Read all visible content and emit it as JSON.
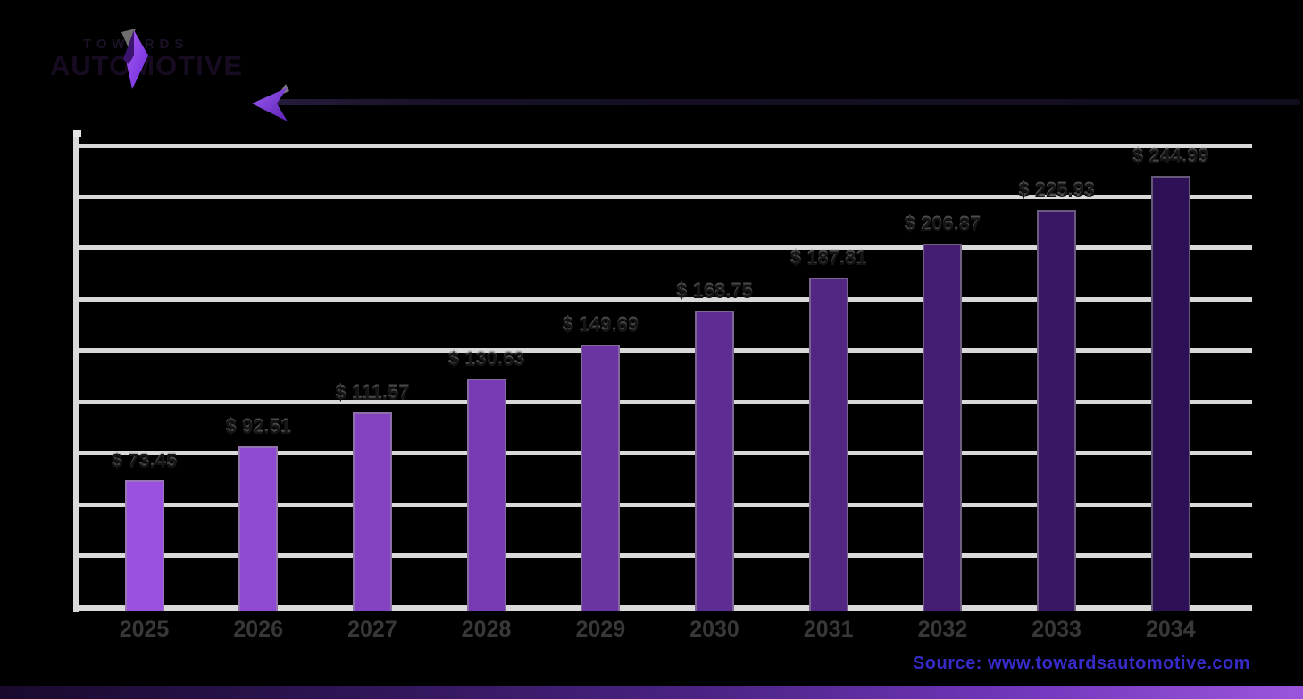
{
  "brand": {
    "name_top": "TOWARDS",
    "name_bottom": "AUTOMOTIVE"
  },
  "source": {
    "label": "Source: www.towardsautomotive.com",
    "color": "#372bc7"
  },
  "colors": {
    "page_background": "#000000",
    "gridline": "#d9d9d9",
    "value_label_text": "#151515",
    "year_label_text": "#383838",
    "bottom_strip_gradient": [
      "#190a2d",
      "#9b55dc"
    ],
    "logo_purple": "#8b46e8"
  },
  "chart_data": {
    "type": "bar",
    "title": "",
    "xlabel": "",
    "ylabel": "",
    "categories": [
      "2025",
      "2026",
      "2027",
      "2028",
      "2029",
      "2030",
      "2031",
      "2032",
      "2033",
      "2034"
    ],
    "values": [
      73.45,
      92.51,
      111.57,
      130.63,
      149.69,
      168.75,
      187.81,
      206.87,
      225.93,
      244.99
    ],
    "labels": [
      "$ 73.45",
      "$ 92.51",
      "$ 111.57",
      "$ 130.63",
      "$ 149.69",
      "$ 168.75",
      "$ 187.81",
      "$ 206.87",
      "$ 225.93",
      "$ 244.99"
    ],
    "ylim": [
      0,
      260
    ],
    "gridline_count": 10,
    "grid_on": true,
    "legend": "none",
    "bar_colors": [
      "#9B51E0",
      "#8F4AD1",
      "#8343C1",
      "#763BB2",
      "#6A34A2",
      "#5E2D93",
      "#522683",
      "#451E74",
      "#391764",
      "#2D1055"
    ]
  }
}
